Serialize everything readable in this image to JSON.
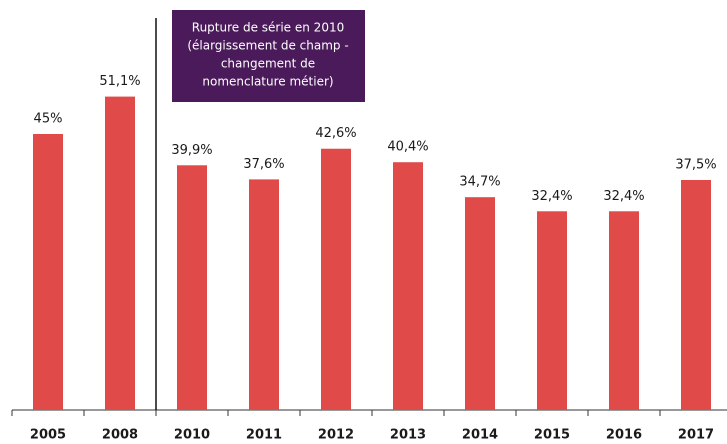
{
  "chart_data": {
    "type": "bar",
    "categories": [
      "2005",
      "2008",
      "2010",
      "2011",
      "2012",
      "2013",
      "2014",
      "2015",
      "2016",
      "2017"
    ],
    "values": [
      45,
      51.1,
      39.9,
      37.6,
      42.6,
      40.4,
      34.7,
      32.4,
      32.4,
      37.5
    ],
    "value_labels": [
      "45%",
      "51,1%",
      "39,9%",
      "37,6%",
      "42,6%",
      "40,4%",
      "34,7%",
      "32,4%",
      "32,4%",
      "37,5%"
    ],
    "color": "#e04b4a",
    "ylim": [
      0,
      60
    ],
    "annotation": {
      "lines": [
        "Rupture de série en 2010",
        "(élargissement de champ -",
        "changement de",
        "nomenclature métier)"
      ],
      "color": "#4b1a5a"
    }
  }
}
